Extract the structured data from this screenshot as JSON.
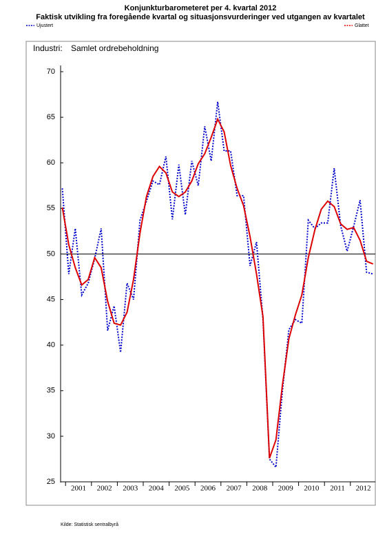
{
  "chart_data": {
    "type": "line",
    "title": "Konjunkturbarometeret per 4. kvartal 2012",
    "subtitle": "Faktisk utvikling fra foregående kvartal og situasjonsvurderinger ved utgangen av kvartalet",
    "panel_label": "Industri:",
    "panel_title": "Samlet ordrebeholdning",
    "source": "Kilde: Statistisk sentralbyrå",
    "categories": [
      null,
      "2001",
      null,
      null,
      null,
      "2002",
      null,
      null,
      null,
      "2003",
      null,
      null,
      null,
      "2004",
      null,
      null,
      null,
      "2005",
      null,
      null,
      null,
      "2006",
      null,
      null,
      null,
      "2007",
      null,
      null,
      null,
      "2008",
      null,
      null,
      null,
      "2009",
      null,
      null,
      null,
      "2010",
      null,
      null,
      null,
      "2011",
      null,
      null,
      null,
      "2012",
      null,
      null,
      null
    ],
    "series": [
      {
        "name": "Ujustert",
        "color": "#0000cc",
        "style": "dotted",
        "values": [
          57.2,
          47.8,
          52.8,
          45.5,
          46.8,
          49.5,
          52.8,
          41.6,
          44.3,
          39.2,
          46.8,
          45.0,
          53.7,
          55.8,
          58.0,
          57.6,
          60.7,
          53.8,
          59.8,
          54.3,
          60.2,
          57.5,
          64.0,
          60.2,
          66.7,
          61.3,
          61.3,
          56.4,
          56.4,
          48.7,
          51.3,
          42.8,
          27.5,
          26.6,
          35.0,
          41.7,
          42.8,
          42.4,
          53.7,
          52.8,
          53.4,
          53.4,
          59.4,
          53.1,
          50.3,
          53.0,
          55.9,
          48.0,
          47.8
        ]
      },
      {
        "name": "Glattet",
        "color": "#dd0000",
        "style": "solid",
        "values": [
          55.1,
          51.0,
          48.5,
          46.6,
          47.2,
          49.6,
          48.5,
          44.8,
          42.4,
          42.2,
          43.6,
          47.2,
          52.3,
          56.3,
          58.5,
          59.6,
          58.9,
          56.8,
          56.3,
          56.8,
          58.0,
          59.9,
          61.0,
          62.8,
          64.8,
          63.4,
          59.7,
          57.2,
          55.3,
          51.9,
          47.8,
          43.1,
          27.6,
          29.6,
          35.6,
          40.7,
          43.3,
          45.5,
          49.6,
          52.6,
          54.9,
          55.8,
          55.2,
          53.3,
          52.7,
          52.9,
          51.5,
          49.2,
          48.9
        ]
      }
    ],
    "ylim": [
      25,
      70
    ],
    "yticks": [
      25,
      30,
      35,
      40,
      45,
      50,
      55,
      60,
      65,
      70
    ],
    "reference_line": 50,
    "grid": false
  }
}
